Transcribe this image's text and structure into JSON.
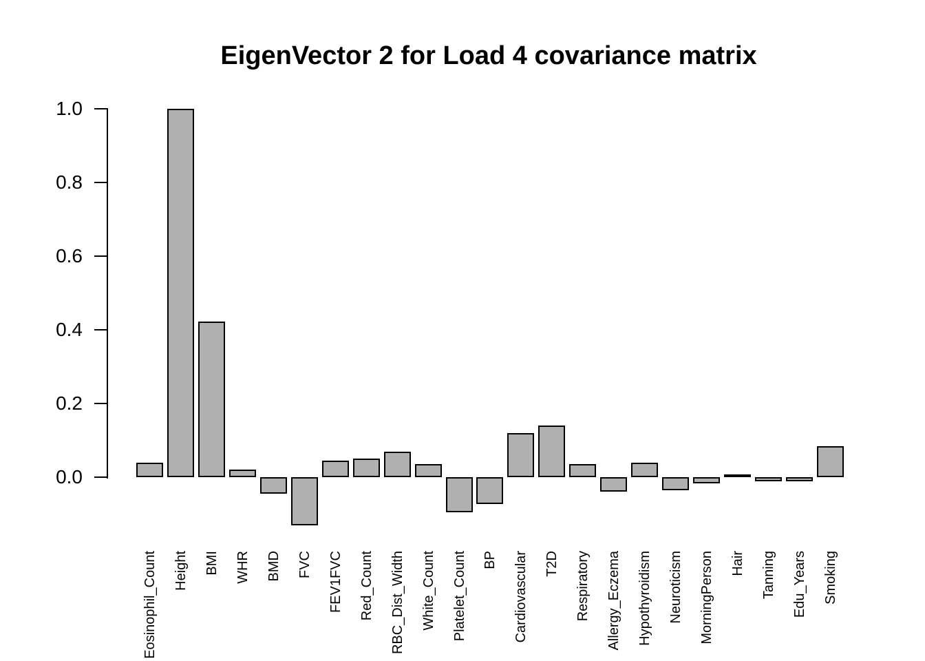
{
  "chart_data": {
    "type": "bar",
    "title": "EigenVector 2 for Load 4 covariance matrix",
    "xlabel": "",
    "ylabel": "",
    "categories": [
      "Eosinophil_Count",
      "Height",
      "BMI",
      "WHR",
      "BMD",
      "FVC",
      "FEV1FVC",
      "Red_Count",
      "RBC_Dist_Width",
      "White_Count",
      "Platelet_Count",
      "BP",
      "Cardiovascular",
      "T2D",
      "Respiratory",
      "Allergy_Eczema",
      "Hypothyroidism",
      "Neuroticism",
      "MorningPerson",
      "Hair",
      "Tanning",
      "Edu_Years",
      "Smoking"
    ],
    "values": [
      0.04,
      1.0,
      0.423,
      0.02,
      -0.045,
      -0.13,
      0.045,
      0.05,
      0.07,
      0.035,
      -0.095,
      -0.073,
      0.12,
      0.14,
      0.035,
      -0.04,
      0.04,
      -0.035,
      -0.016,
      0.006,
      -0.012,
      -0.012,
      0.085
    ],
    "ytick_labels": [
      "0.0",
      "0.2",
      "0.4",
      "0.6",
      "0.8",
      "1.0"
    ],
    "ylim": [
      -0.15,
      1.0
    ],
    "grid": "off",
    "legend": "none",
    "bar_fill": "#b0b0b0",
    "bar_border": "#000000"
  }
}
